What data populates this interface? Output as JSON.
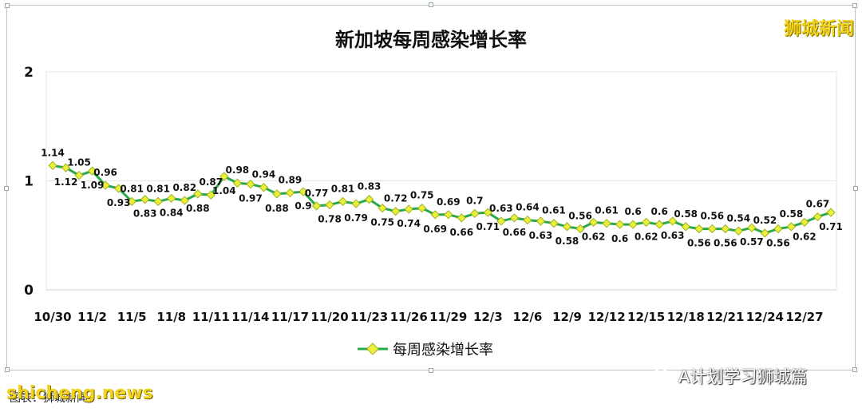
{
  "watermark_brand": "狮城新闻",
  "wechat_label": "A计划学习狮城篇",
  "footer_source": "图表：狮城新闻",
  "site_watermark": "shicheng.news",
  "colors": {
    "line": "#2aa84a",
    "marker": "#e8f03c",
    "marker_stroke": "#a3b21c",
    "grid": "#e6e6e6",
    "text": "#111111"
  },
  "chart_data": {
    "type": "line",
    "title": "新加坡每周感染增长率",
    "ylim": [
      0,
      2
    ],
    "yticks": [
      0,
      1,
      2
    ],
    "grid": true,
    "legend_position": "bottom",
    "x_tick_labels": [
      "10/30",
      "11/2",
      "11/5",
      "11/8",
      "11/11",
      "11/14",
      "11/17",
      "11/20",
      "11/23",
      "11/26",
      "11/29",
      "12/3",
      "12/6",
      "12/9",
      "12/12",
      "12/15",
      "12/18",
      "12/21",
      "12/24",
      "12/27"
    ],
    "series": [
      {
        "name": "每周感染增长率",
        "values": [
          1.14,
          1.12,
          1.05,
          1.09,
          0.96,
          0.93,
          0.81,
          0.83,
          0.81,
          0.84,
          0.82,
          0.88,
          0.87,
          1.04,
          0.98,
          0.97,
          0.94,
          0.88,
          0.89,
          0.9,
          0.77,
          0.78,
          0.81,
          0.79,
          0.83,
          0.75,
          0.72,
          0.74,
          0.75,
          0.69,
          0.69,
          0.66,
          0.7,
          0.71,
          0.63,
          0.66,
          0.64,
          0.63,
          0.61,
          0.58,
          0.56,
          0.62,
          0.61,
          0.6,
          0.6,
          0.62,
          0.6,
          0.63,
          0.58,
          0.56,
          0.56,
          0.56,
          0.54,
          0.57,
          0.52,
          0.56,
          0.58,
          0.62,
          0.67,
          0.71
        ]
      }
    ]
  }
}
